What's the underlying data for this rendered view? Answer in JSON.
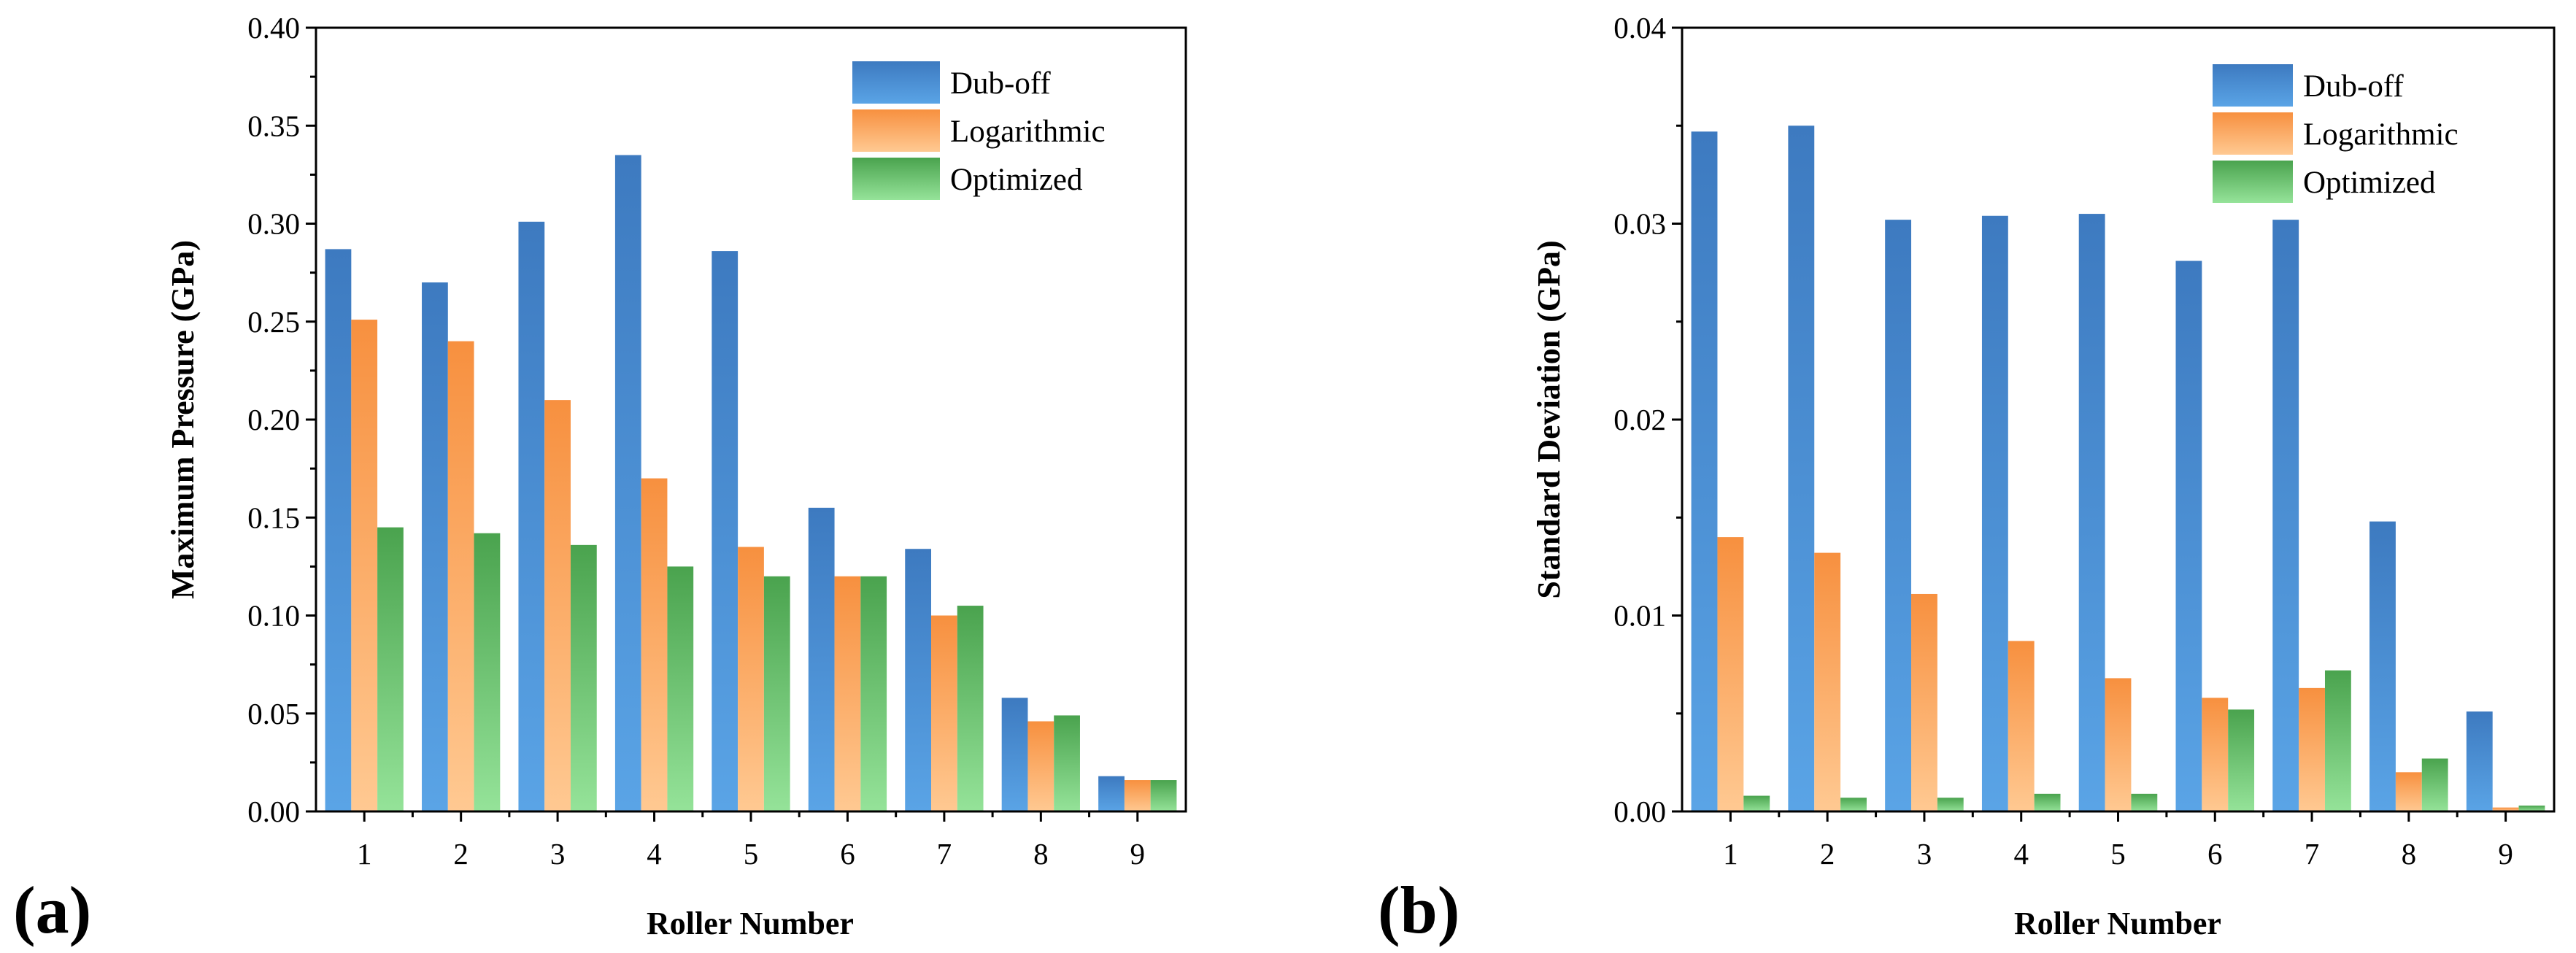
{
  "colors": {
    "dub_off": [
      "#3d7ac0",
      "#5aa4e6"
    ],
    "logarithmic": [
      "#f7903f",
      "#ffc992"
    ],
    "optimized": [
      "#4aa34e",
      "#95e399"
    ]
  },
  "chart_data": [
    {
      "type": "bar",
      "panel_label": "(a)",
      "xlabel": "Roller Number",
      "ylabel": "Maximum Pressure (GPa)",
      "categories": [
        "1",
        "2",
        "3",
        "4",
        "5",
        "6",
        "7",
        "8",
        "9"
      ],
      "ylim": [
        0,
        0.4
      ],
      "yticks": [
        "0.00",
        "0.05",
        "0.10",
        "0.15",
        "0.20",
        "0.25",
        "0.30",
        "0.35",
        "0.40"
      ],
      "legend_position": "top-right",
      "series": [
        {
          "name": "Dub-off",
          "color_key": "dub_off",
          "values": [
            0.287,
            0.27,
            0.301,
            0.335,
            0.286,
            0.155,
            0.134,
            0.058,
            0.018
          ]
        },
        {
          "name": "Logarithmic",
          "color_key": "logarithmic",
          "values": [
            0.251,
            0.24,
            0.21,
            0.17,
            0.135,
            0.12,
            0.1,
            0.046,
            0.016
          ]
        },
        {
          "name": "Optimized",
          "color_key": "optimized",
          "values": [
            0.145,
            0.142,
            0.136,
            0.125,
            0.12,
            0.12,
            0.105,
            0.049,
            0.016
          ]
        }
      ]
    },
    {
      "type": "bar",
      "panel_label": "(b)",
      "xlabel": "Roller Number",
      "ylabel": "Standard Deviation (GPa)",
      "categories": [
        "1",
        "2",
        "3",
        "4",
        "5",
        "6",
        "7",
        "8",
        "9"
      ],
      "ylim": [
        0,
        0.04
      ],
      "yticks": [
        "0.00",
        "0.01",
        "0.02",
        "0.03",
        "0.04"
      ],
      "legend_position": "top-right",
      "series": [
        {
          "name": "Dub-off",
          "color_key": "dub_off",
          "values": [
            0.0347,
            0.035,
            0.0302,
            0.0304,
            0.0305,
            0.0281,
            0.0302,
            0.0148,
            0.0051
          ]
        },
        {
          "name": "Logarithmic",
          "color_key": "logarithmic",
          "values": [
            0.014,
            0.0132,
            0.0111,
            0.0087,
            0.0068,
            0.0058,
            0.0063,
            0.002,
            0.0002
          ]
        },
        {
          "name": "Optimized",
          "color_key": "optimized",
          "values": [
            0.0008,
            0.0007,
            0.0007,
            0.0009,
            0.0009,
            0.0052,
            0.0072,
            0.0027,
            0.0003
          ]
        }
      ]
    }
  ]
}
